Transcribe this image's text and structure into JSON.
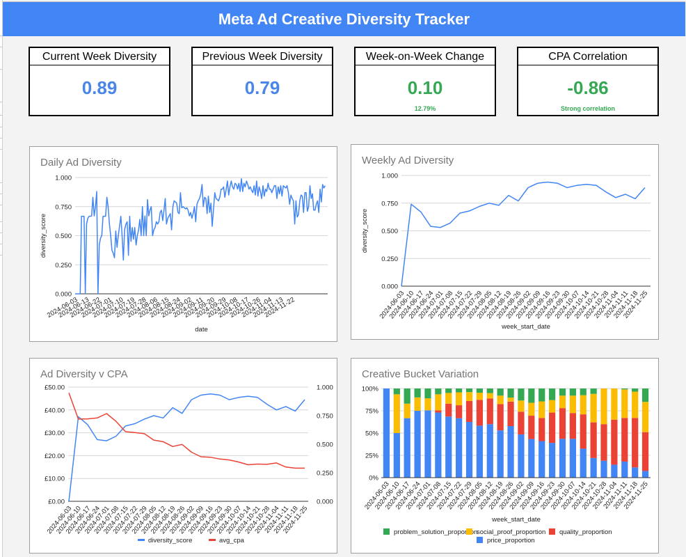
{
  "header": {
    "title": "Meta Ad Creative Diversity Tracker"
  },
  "colors": {
    "header_bg": "#4285f4",
    "metric_blue": "#4a86e8",
    "metric_green": "#34a853",
    "series_blue": "#4285f4",
    "series_red": "#ea4335",
    "series_yellow": "#fbbc04",
    "series_green": "#34a853"
  },
  "cards": [
    {
      "title": "Current Week Diversity",
      "value": "0.89",
      "subtext": "",
      "tone": "blue"
    },
    {
      "title": "Previous Week Diversity",
      "value": "0.79",
      "subtext": "",
      "tone": "blue"
    },
    {
      "title": "Week-on-Week Change",
      "value": "0.10",
      "subtext": "12.79%",
      "tone": "green"
    },
    {
      "title": "CPA Correlation",
      "value": "-0.86",
      "subtext": "Strong correlation",
      "tone": "green"
    }
  ],
  "chart_data": [
    {
      "id": "daily",
      "type": "line",
      "title": "Daily Ad Diversity",
      "xlabel": "date",
      "ylabel": "diversity_score",
      "ylim": [
        0,
        1
      ],
      "yticks": [
        "0.000",
        "0.250",
        "0.500",
        "0.750",
        "1.000"
      ],
      "grid": true,
      "start_date": "2024-06-03",
      "xtick_labels": [
        "2024-06-03",
        "2024-06-13",
        "2024-06-22",
        "2024-07-01",
        "2024-07-10",
        "2024-07-19",
        "2024-07-28",
        "2024-08-06",
        "2024-08-15",
        "2024-08-24",
        "2024-09-02",
        "2024-09-11",
        "2024-09-20",
        "2024-09-29",
        "2024-10-08",
        "2024-10-17",
        "2024-10-26",
        "2024-11-04",
        "2024-11-13",
        "2024-11-22"
      ],
      "series": [
        {
          "name": "diversity_score",
          "color": "#4285f4",
          "values": [
            0,
            0,
            0,
            0,
            0,
            0.667,
            0.667,
            0.667,
            0,
            0.6,
            0.65,
            0.667,
            0.667,
            0.67,
            0.83,
            0.67,
            0.75,
            0.88,
            0,
            0.42,
            0.48,
            0.5,
            0.667,
            0.667,
            0.667,
            0.83,
            0.75,
            0.6,
            0.5,
            0.375,
            0.35,
            0.31,
            0.54,
            0.4,
            0.5,
            0.58,
            0.667,
            0.5,
            0.29,
            0.55,
            0.6,
            0.62,
            0.33,
            0.667,
            0.45,
            0.57,
            0.47,
            0.57,
            0.42,
            0.5,
            0.55,
            0.64,
            0.5,
            0.75,
            0.5,
            0.67,
            0.5,
            0.81,
            0.67,
            0.72,
            0.75,
            0.5,
            0.55,
            0.57,
            0.62,
            0.6,
            0.62,
            0.7,
            0.72,
            0.63,
            0.72,
            0.82,
            0.6,
            0.65,
            0.67,
            0.69,
            0.55,
            0.75,
            0.8,
            0.79,
            0.78,
            0.7,
            0.69,
            0.87,
            0.74,
            0.75,
            0.74,
            0.73,
            0.74,
            0.72,
            0.67,
            0.7,
            0.65,
            0.69,
            0.75,
            0.62,
            0.77,
            0.8,
            0.82,
            0.86,
            0.94,
            0.75,
            0.83,
            0.82,
            0.69,
            0.84,
            0.7,
            0.78,
            0.58,
            0.72,
            0.87,
            0.82,
            0.81,
            0.8,
            0.83,
            0.9,
            0.9,
            0.92,
            0.83,
            0.9,
            0.97,
            0.85,
            0.92,
            0.97,
            0.92,
            0.9,
            0.95,
            0.94,
            0.9,
            0.95,
            0.88,
            0.99,
            0.88,
            0.95,
            0.92,
            0.97,
            0.94,
            0.9,
            0.92,
            0.89,
            0.87,
            0.93,
            0.85,
            0.97,
            0.84,
            0.92,
            0.88,
            0.82,
            0.93,
            0.84,
            0.9,
            0.88,
            0.95,
            0.9,
            0.9,
            0.87,
            0.9,
            0.93,
            0.93,
            0.82,
            0.92,
            0.86,
            0.93,
            0.84,
            0.93,
            0.92,
            0.91,
            0.93,
            0.87,
            0.77,
            0.85,
            0.82,
            0.8,
            0.6,
            0.8,
            0.66,
            0.68,
            0.8,
            0.85,
            0.84,
            0.7,
            0.87,
            0.87,
            0.71,
            0.75,
            0.93,
            0.82,
            0.86,
            0.72,
            0.72,
            0.77,
            0.8,
            0.7,
            0.9,
            0.79,
            0.94,
            0.91,
            0.93
          ]
        }
      ]
    },
    {
      "id": "weekly",
      "type": "line",
      "title": "Weekly Ad Diversity",
      "xlabel": "week_start_date",
      "ylabel": "diversity_score",
      "ylim": [
        0,
        1
      ],
      "yticks": [
        "0.000",
        "0.250",
        "0.500",
        "0.750",
        "1.000"
      ],
      "grid": true,
      "categories": [
        "2024-06-03",
        "2024-06-10",
        "2024-06-17",
        "2024-06-24",
        "2024-07-01",
        "2024-07-08",
        "2024-07-15",
        "2024-07-22",
        "2024-07-29",
        "2024-08-05",
        "2024-08-12",
        "2024-08-19",
        "2024-08-26",
        "2024-09-02",
        "2024-09-09",
        "2024-09-16",
        "2024-09-23",
        "2024-09-30",
        "2024-10-07",
        "2024-10-14",
        "2024-10-21",
        "2024-10-28",
        "2024-11-04",
        "2024-11-11",
        "2024-11-18",
        "2024-11-25"
      ],
      "series": [
        {
          "name": "diversity_score",
          "color": "#4285f4",
          "values": [
            0.0,
            0.74,
            0.67,
            0.54,
            0.53,
            0.57,
            0.66,
            0.68,
            0.72,
            0.75,
            0.73,
            0.82,
            0.77,
            0.89,
            0.93,
            0.94,
            0.93,
            0.89,
            0.91,
            0.92,
            0.91,
            0.85,
            0.8,
            0.83,
            0.79,
            0.89
          ]
        }
      ]
    },
    {
      "id": "cpa",
      "type": "line",
      "title": "Ad Diversity v CPA",
      "xlabel": "",
      "ylabel_left": "",
      "ylabel_right": "",
      "ylim_left": [
        0,
        50
      ],
      "ylim_right": [
        0,
        1
      ],
      "yticks_left": [
        "£0.00",
        "£10.00",
        "£20.00",
        "£30.00",
        "£40.00",
        "£50.00"
      ],
      "yticks_right": [
        "0.000",
        "0.250",
        "0.500",
        "0.750",
        "1.000"
      ],
      "grid": true,
      "legend": "bottom",
      "categories": [
        "2024-06-03",
        "2024-06-10",
        "2024-06-17",
        "2024-06-24",
        "2024-07-01",
        "2024-07-08",
        "2024-07-15",
        "2024-07-22",
        "2024-07-29",
        "2024-08-05",
        "2024-08-12",
        "2024-08-19",
        "2024-08-26",
        "2024-09-02",
        "2024-09-09",
        "2024-09-16",
        "2024-09-23",
        "2024-09-30",
        "2024-10-07",
        "2024-10-14",
        "2024-10-21",
        "2024-10-28",
        "2024-11-04",
        "2024-11-11",
        "2024-11-18",
        "2024-11-25"
      ],
      "series": [
        {
          "name": "diversity_score",
          "axis": "right",
          "color": "#4285f4",
          "values": [
            0.0,
            0.74,
            0.67,
            0.54,
            0.53,
            0.57,
            0.66,
            0.68,
            0.72,
            0.75,
            0.73,
            0.82,
            0.77,
            0.89,
            0.93,
            0.94,
            0.93,
            0.89,
            0.91,
            0.92,
            0.91,
            0.85,
            0.8,
            0.83,
            0.79,
            0.89
          ]
        },
        {
          "name": "avg_cpa",
          "axis": "left",
          "color": "#ea4335",
          "values": [
            47.5,
            36.0,
            36.1,
            36.5,
            38.4,
            35.0,
            30.5,
            30.1,
            29.6,
            26.8,
            26.1,
            24.0,
            24.9,
            21.5,
            19.5,
            19.3,
            18.5,
            18.1,
            17.2,
            16.0,
            16.3,
            16.2,
            16.8,
            15.0,
            14.5,
            14.5
          ]
        }
      ]
    },
    {
      "id": "buckets",
      "type": "bar",
      "stacked": "percent",
      "title": "Creative Bucket Variation",
      "xlabel": "week_start_date",
      "ylabel": "",
      "ylim": [
        0,
        100
      ],
      "yticks": [
        "0%",
        "25%",
        "50%",
        "75%",
        "100%"
      ],
      "grid": true,
      "legend": "bottom",
      "categories": [
        "2024-06-03",
        "2024-06-10",
        "2024-06-17",
        "2024-06-24",
        "2024-07-01",
        "2024-07-08",
        "2024-07-15",
        "2024-07-22",
        "2024-07-29",
        "2024-08-05",
        "2024-08-12",
        "2024-08-19",
        "2024-08-26",
        "2024-09-02",
        "2024-09-09",
        "2024-09-16",
        "2024-09-23",
        "2024-09-30",
        "2024-10-07",
        "2024-10-14",
        "2024-10-21",
        "2024-10-28",
        "2024-11-04",
        "2024-11-11",
        "2024-11-18",
        "2024-11-25"
      ],
      "series": [
        {
          "name": "price_proportion",
          "color": "#4285f4",
          "values": [
            100,
            50,
            66.7,
            75,
            75.5,
            73,
            68.5,
            66.7,
            62.5,
            58.3,
            60,
            53,
            57.8,
            48.5,
            43.3,
            41,
            39,
            43.5,
            43.5,
            32.5,
            22,
            19,
            14.5,
            18,
            11.5,
            7.5
          ]
        },
        {
          "name": "quality_proportion",
          "color": "#ea4335",
          "values": [
            0,
            0,
            0,
            0,
            0,
            2.5,
            14.5,
            14.5,
            23.5,
            29,
            28.8,
            29.5,
            27.5,
            25.5,
            26.2,
            26,
            34,
            34.5,
            29,
            38.5,
            40,
            41,
            50.5,
            49,
            55.5,
            43.5
          ]
        },
        {
          "name": "social_proof_proportion",
          "color": "#fbbc04",
          "values": [
            0,
            43.5,
            16.3,
            15,
            13.5,
            18,
            12,
            14.5,
            10,
            8,
            6,
            9.5,
            4.5,
            12.5,
            14.5,
            18.5,
            14,
            14,
            19.5,
            21.5,
            32,
            40,
            35,
            32,
            29.5,
            34
          ]
        },
        {
          "name": "problem_solution_proportion",
          "color": "#34a853",
          "values": [
            0,
            6.5,
            17,
            10,
            11,
            6.5,
            5,
            4.3,
            4,
            4.7,
            5.2,
            8,
            10.2,
            13.5,
            16,
            14.5,
            13,
            8,
            8,
            7.5,
            6,
            0,
            0,
            1,
            3.5,
            15
          ]
        }
      ],
      "legend_order": [
        "problem_solution_proportion",
        "social_proof_proportion",
        "quality_proportion",
        "price_proportion"
      ]
    }
  ]
}
